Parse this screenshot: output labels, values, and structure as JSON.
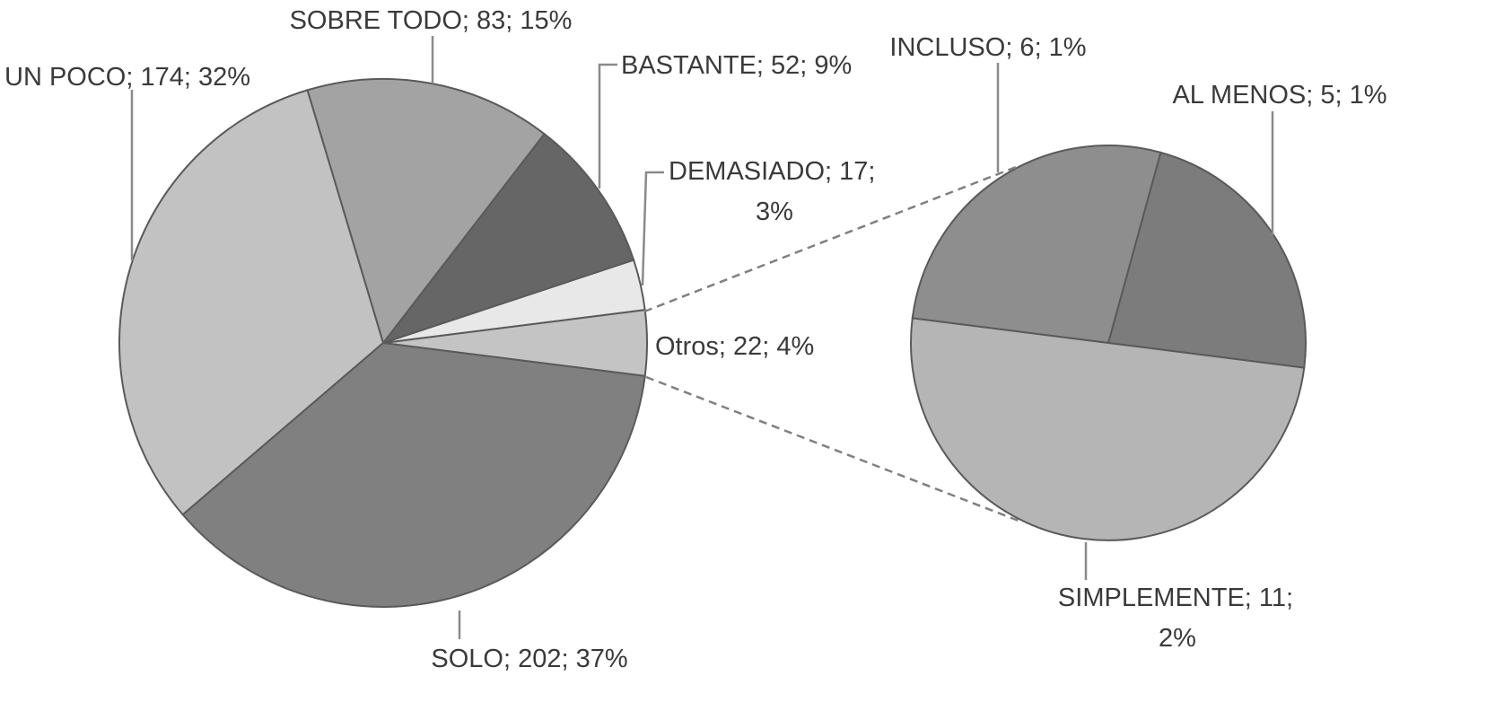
{
  "chart_data": {
    "type": "pie",
    "subtype": "pie-of-pie",
    "title": "",
    "main_pie": {
      "slices": [
        {
          "name": "Otros",
          "value": 22,
          "percent": "4%",
          "label_line1": "Otros; 22; 4%",
          "label_line2": "",
          "color": "#c4c4c4"
        },
        {
          "name": "DEMASIADO",
          "value": 17,
          "percent": "3%",
          "label_line1": "DEMASIADO; 17;",
          "label_line2": "3%",
          "color": "#e8e8e8"
        },
        {
          "name": "BASTANTE",
          "value": 52,
          "percent": "9%",
          "label_line1": "BASTANTE; 52; 9%",
          "label_line2": "",
          "color": "#666666"
        },
        {
          "name": "SOBRE TODO",
          "value": 83,
          "percent": "15%",
          "label_line1": "SOBRE TODO; 83; 15%",
          "label_line2": "",
          "color": "#a3a3a3"
        },
        {
          "name": "UN POCO",
          "value": 174,
          "percent": "32%",
          "label_line1": "UN POCO; 174; 32%",
          "label_line2": "",
          "color": "#c2c2c2"
        },
        {
          "name": "SOLO",
          "value": 202,
          "percent": "37%",
          "label_line1": "SOLO; 202; 37%",
          "label_line2": "",
          "color": "#808080"
        }
      ]
    },
    "secondary_pie": {
      "of": "Otros",
      "slices": [
        {
          "name": "AL MENOS",
          "value": 5,
          "percent": "1%",
          "label_line1": "AL MENOS; 5; 1%",
          "label_line2": "",
          "color": "#7c7c7c"
        },
        {
          "name": "INCLUSO",
          "value": 6,
          "percent": "1%",
          "label_line1": "INCLUSO; 6; 1%",
          "label_line2": "",
          "color": "#8e8e8e"
        },
        {
          "name": "SIMPLEMENTE",
          "value": 11,
          "percent": "2%",
          "label_line1": "SIMPLEMENTE; 11;",
          "label_line2": "2%",
          "color": "#b5b5b5"
        }
      ]
    },
    "legend": "none"
  }
}
